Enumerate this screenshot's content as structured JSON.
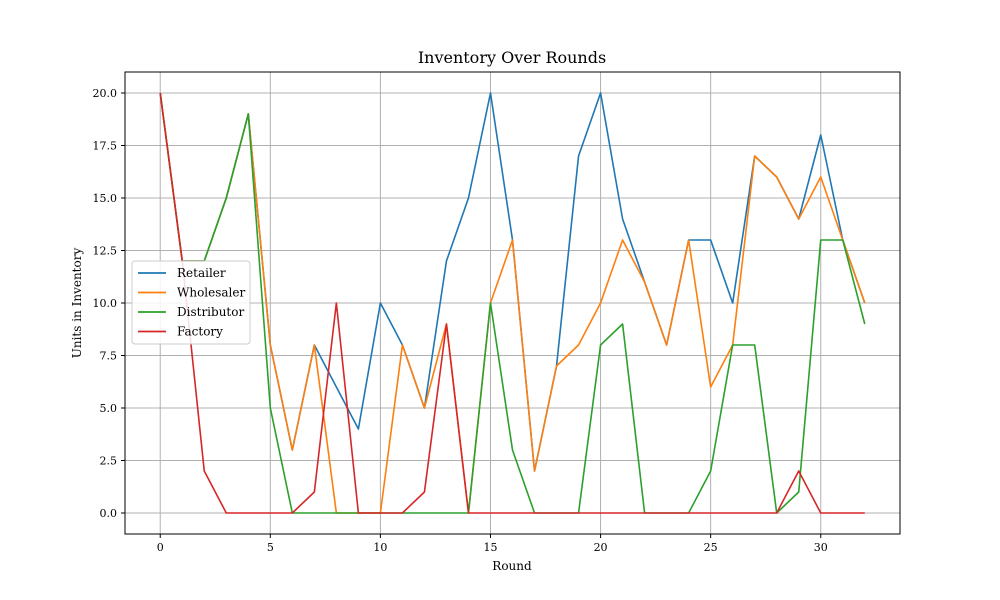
{
  "chart_data": {
    "type": "line",
    "title": "Inventory Over Rounds",
    "xlabel": "Round",
    "ylabel": "Units in Inventory",
    "xlim": [
      -1.6,
      33.6
    ],
    "ylim": [
      -1.0,
      21.0
    ],
    "xticks": [
      0,
      5,
      10,
      15,
      20,
      25,
      30
    ],
    "yticks": [
      0.0,
      2.5,
      5.0,
      7.5,
      10.0,
      12.5,
      15.0,
      17.5,
      20.0
    ],
    "xtick_labels": [
      "0",
      "5",
      "10",
      "15",
      "20",
      "25",
      "30"
    ],
    "ytick_labels": [
      "0.0",
      "2.5",
      "5.0",
      "7.5",
      "10.0",
      "12.5",
      "15.0",
      "17.5",
      "20.0"
    ],
    "grid": true,
    "legend_position": "center-left",
    "x": [
      0,
      1,
      2,
      3,
      4,
      5,
      6,
      7,
      8,
      9,
      10,
      11,
      12,
      13,
      14,
      15,
      16,
      17,
      18,
      19,
      20,
      21,
      22,
      23,
      24,
      25,
      26,
      27,
      28,
      29,
      30,
      31,
      32
    ],
    "series": [
      {
        "name": "Retailer",
        "color": "#1f77b4",
        "values": [
          20,
          12,
          12,
          15,
          19,
          8,
          3,
          8,
          6,
          4,
          10,
          8,
          5,
          12,
          15,
          20,
          13,
          2,
          7,
          17,
          20,
          14,
          11,
          8,
          13,
          13,
          10,
          17,
          16,
          14,
          18,
          13,
          10
        ]
      },
      {
        "name": "Wholesaler",
        "color": "#ff7f0e",
        "values": [
          20,
          12,
          12,
          15,
          19,
          8,
          3,
          8,
          0,
          0,
          0,
          8,
          5,
          9,
          0,
          10,
          13,
          2,
          7,
          8,
          10,
          13,
          11,
          8,
          13,
          6,
          8,
          17,
          16,
          14,
          16,
          13,
          10
        ]
      },
      {
        "name": "Distributor",
        "color": "#2ca02c",
        "values": [
          20,
          12,
          12,
          15,
          19,
          5,
          0,
          0,
          0,
          0,
          0,
          0,
          0,
          0,
          0,
          10,
          3,
          0,
          0,
          0,
          8,
          9,
          0,
          0,
          0,
          2,
          8,
          8,
          0,
          1,
          13,
          13,
          9
        ]
      },
      {
        "name": "Factory",
        "color": "#d62728",
        "values": [
          20,
          12,
          2,
          0,
          0,
          0,
          0,
          1,
          10,
          0,
          0,
          0,
          1,
          9,
          0,
          0,
          0,
          0,
          0,
          0,
          0,
          0,
          0,
          0,
          0,
          0,
          0,
          0,
          0,
          2,
          0,
          0,
          0
        ]
      }
    ]
  }
}
